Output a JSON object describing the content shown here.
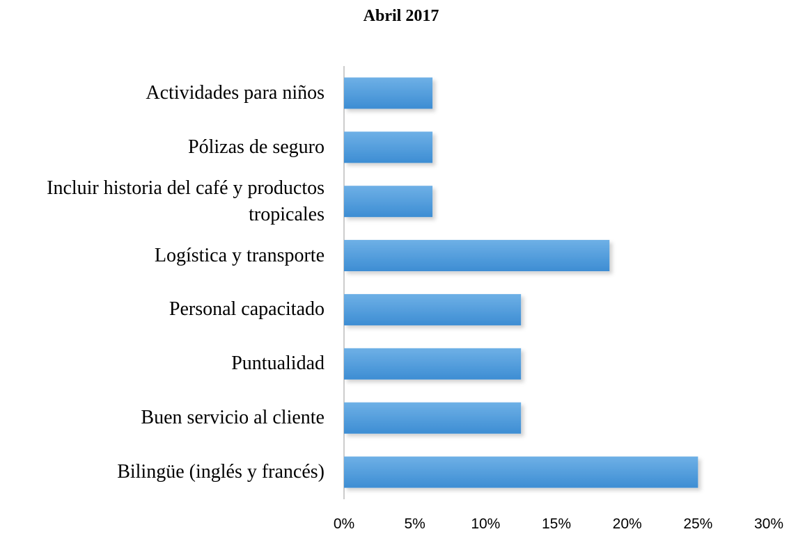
{
  "chart_data": {
    "type": "bar",
    "orientation": "horizontal",
    "title": "Abril 2017",
    "categories": [
      "Actividades para niños",
      "Pólizas de seguro",
      "Incluir historia del café y productos tropicales",
      "Logística y transporte",
      "Personal capacitado",
      "Puntualidad",
      "Buen servicio al cliente",
      "Bilingüe (inglés y francés)"
    ],
    "values": [
      6.25,
      6.25,
      6.25,
      18.75,
      12.5,
      12.5,
      12.5,
      25
    ],
    "color": "#4a97da",
    "xlim": [
      0,
      30
    ],
    "xticks": [
      {
        "value": 0,
        "label": "0%"
      },
      {
        "value": 5,
        "label": "5%"
      },
      {
        "value": 10,
        "label": "10%"
      },
      {
        "value": 15,
        "label": "15%"
      },
      {
        "value": 20,
        "label": "20%"
      },
      {
        "value": 25,
        "label": "25%"
      },
      {
        "value": 30,
        "label": "30%"
      }
    ],
    "grid": false
  }
}
